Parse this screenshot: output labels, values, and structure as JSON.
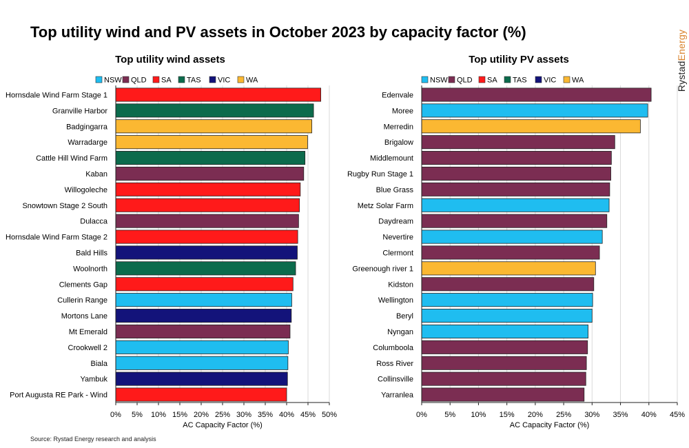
{
  "title": "Top utility wind and PV assets in October 2023 by capacity factor (%)",
  "brand": {
    "part1": "Rystad",
    "part2": "Energy"
  },
  "source": "Source: Rystad Energy research and analysis",
  "legend": [
    {
      "name": "NSW",
      "color": "#1fbdf0"
    },
    {
      "name": "QLD",
      "color": "#7b2d52"
    },
    {
      "name": "SA",
      "color": "#ff1a1a"
    },
    {
      "name": "TAS",
      "color": "#0c6b4c"
    },
    {
      "name": "VIC",
      "color": "#13137a"
    },
    {
      "name": "WA",
      "color": "#fbb832"
    }
  ],
  "chart_data": [
    {
      "type": "bar",
      "orientation": "horizontal",
      "title": "Top utility wind assets",
      "xlabel": "AC Capacity Factor (%)",
      "xlim": [
        0,
        50
      ],
      "ticks": [
        0,
        5,
        10,
        15,
        20,
        25,
        30,
        35,
        40,
        45,
        50
      ],
      "tick_suffix": "%",
      "categories": [
        "Hornsdale Wind Farm Stage 1",
        "Granville Harbor",
        "Badgingarra",
        "Warradarge",
        "Cattle Hill Wind Farm",
        "Kaban",
        "Willogoleche",
        "Snowtown Stage 2 South",
        "Dulacca",
        "Hornsdale Wind Farm Stage 2",
        "Bald Hills",
        "Woolnorth",
        "Clements Gap",
        "Cullerin Range",
        "Mortons Lane",
        "Mt Emerald",
        "Crookwell 2",
        "Biala",
        "Yambuk",
        "Port Augusta RE Park - Wind"
      ],
      "values": [
        48.0,
        46.3,
        45.9,
        44.9,
        44.3,
        44.0,
        43.2,
        43.0,
        42.8,
        42.6,
        42.5,
        42.1,
        41.5,
        41.2,
        41.1,
        40.8,
        40.4,
        40.3,
        40.2,
        40.0
      ],
      "states": [
        "SA",
        "TAS",
        "WA",
        "WA",
        "TAS",
        "QLD",
        "SA",
        "SA",
        "QLD",
        "SA",
        "VIC",
        "TAS",
        "SA",
        "NSW",
        "VIC",
        "QLD",
        "NSW",
        "NSW",
        "VIC",
        "SA"
      ]
    },
    {
      "type": "bar",
      "orientation": "horizontal",
      "title": "Top utility PV assets",
      "xlabel": "AC Capacity Factor (%)",
      "xlim": [
        0,
        45
      ],
      "ticks": [
        0,
        5,
        10,
        15,
        20,
        25,
        30,
        35,
        40,
        45
      ],
      "tick_suffix": "%",
      "categories": [
        "Edenvale",
        "Moree",
        "Merredin",
        "Brigalow",
        "Middlemount",
        "Rugby Run Stage 1",
        "Blue Grass",
        "Metz Solar Farm",
        "Daydream",
        "Nevertire",
        "Clermont",
        "Greenough river 1",
        "Kidston",
        "Wellington",
        "Beryl",
        "Nyngan",
        "Columboola",
        "Ross River",
        "Collinsville",
        "Yarranlea"
      ],
      "values": [
        40.4,
        39.8,
        38.5,
        34.0,
        33.4,
        33.3,
        33.1,
        33.0,
        32.6,
        31.8,
        31.3,
        30.6,
        30.3,
        30.1,
        30.0,
        29.3,
        29.2,
        29.0,
        28.9,
        28.6
      ],
      "states": [
        "QLD",
        "NSW",
        "WA",
        "QLD",
        "QLD",
        "QLD",
        "QLD",
        "NSW",
        "QLD",
        "NSW",
        "QLD",
        "WA",
        "QLD",
        "NSW",
        "NSW",
        "NSW",
        "QLD",
        "QLD",
        "QLD",
        "QLD"
      ]
    }
  ]
}
